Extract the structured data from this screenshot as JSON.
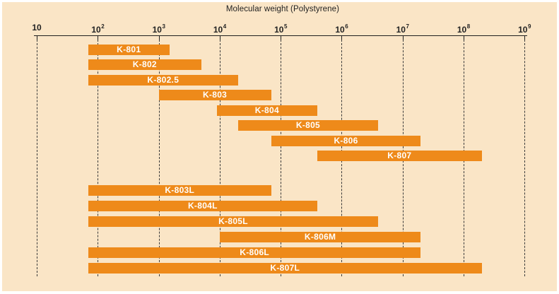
{
  "colors": {
    "panel": "#fae5c6",
    "bar": "#ee8a1a",
    "bar_text": "#ffffff",
    "grid": "#3a3a3a",
    "axis": "#1f1f1f",
    "ink": "#222222"
  },
  "chart_data": {
    "type": "bar",
    "variant": "horizontal-range",
    "title": "Molecular weight (Polystyrene)",
    "legend": "none",
    "grid": "vertical-dashed",
    "x_axis": {
      "scale": "log10",
      "min": 10,
      "max": 1000000000,
      "ticks": [
        {
          "value": 10,
          "base": "10",
          "exp": ""
        },
        {
          "value": 100,
          "base": "10",
          "exp": "2"
        },
        {
          "value": 1000,
          "base": "10",
          "exp": "3"
        },
        {
          "value": 10000,
          "base": "10",
          "exp": "4"
        },
        {
          "value": 100000,
          "base": "10",
          "exp": "5"
        },
        {
          "value": 1000000,
          "base": "10",
          "exp": "6"
        },
        {
          "value": 10000000,
          "base": "10",
          "exp": "7"
        },
        {
          "value": 100000000,
          "base": "10",
          "exp": "8"
        },
        {
          "value": 1000000000,
          "base": "10",
          "exp": "9"
        }
      ]
    },
    "bars": [
      {
        "label": "K-801",
        "from": 70,
        "to": 1500,
        "group": 1
      },
      {
        "label": "K-802",
        "from": 70,
        "to": 5000,
        "group": 1
      },
      {
        "label": "K-802.5",
        "from": 70,
        "to": 20000,
        "group": 1
      },
      {
        "label": "K-803",
        "from": 1000,
        "to": 70000,
        "group": 1
      },
      {
        "label": "K-804",
        "from": 9000,
        "to": 400000,
        "group": 1
      },
      {
        "label": "K-805",
        "from": 20000,
        "to": 4000000,
        "group": 1
      },
      {
        "label": "K-806",
        "from": 70000,
        "to": 20000000,
        "group": 1
      },
      {
        "label": "K-807",
        "from": 400000,
        "to": 200000000,
        "group": 1
      },
      {
        "label": "K-803L",
        "from": 70,
        "to": 70000,
        "group": 2
      },
      {
        "label": "K-804L",
        "from": 70,
        "to": 400000,
        "group": 2
      },
      {
        "label": "K-805L",
        "from": 70,
        "to": 4000000,
        "group": 2
      },
      {
        "label": "K-806M",
        "from": 10000,
        "to": 20000000,
        "group": 2
      },
      {
        "label": "K-806L",
        "from": 70,
        "to": 20000000,
        "group": 2
      },
      {
        "label": "K-807L",
        "from": 70,
        "to": 200000000,
        "group": 2
      }
    ]
  }
}
